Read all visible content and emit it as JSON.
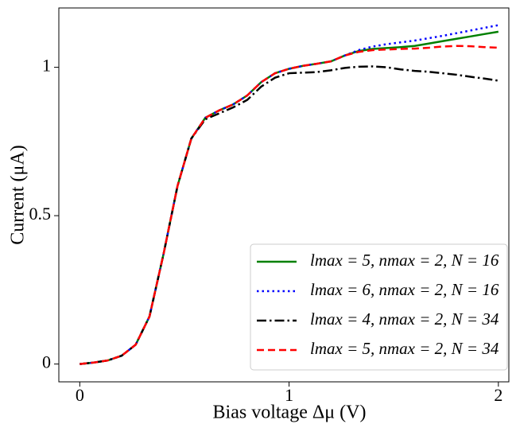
{
  "chart_data": {
    "type": "line",
    "xlabel": "Bias voltage Δμ (V)",
    "ylabel": "Current (μA)",
    "x": [
      0,
      0.067,
      0.133,
      0.2,
      0.267,
      0.333,
      0.4,
      0.467,
      0.533,
      0.6,
      0.667,
      0.733,
      0.8,
      0.867,
      0.933,
      1,
      1.067,
      1.133,
      1.2,
      1.267,
      1.333,
      1.4,
      1.467,
      1.533,
      1.6,
      1.667,
      1.733,
      1.8,
      1.867,
      1.933,
      2
    ],
    "xlim": [
      -0.1,
      2.05
    ],
    "xticks": [
      0,
      1,
      2
    ],
    "ylim": [
      -0.06,
      1.2
    ],
    "yticks": [
      0,
      0.5,
      1
    ],
    "legend": "lower right",
    "series": [
      {
        "name": "lmax = 5, nmax = 2, N = 16",
        "color": "#008000",
        "linestyle": "solid",
        "values": [
          0,
          0.005,
          0.012,
          0.028,
          0.065,
          0.16,
          0.37,
          0.6,
          0.76,
          0.83,
          0.855,
          0.875,
          0.905,
          0.95,
          0.98,
          0.995,
          1.005,
          1.012,
          1.02,
          1.04,
          1.055,
          1.062,
          1.065,
          1.068,
          1.072,
          1.08,
          1.088,
          1.096,
          1.104,
          1.112,
          1.12
        ]
      },
      {
        "name": "lmax = 6, nmax = 2, N = 16",
        "color": "#0000ff",
        "linestyle": "dotted",
        "values": [
          0,
          0.005,
          0.012,
          0.028,
          0.065,
          0.16,
          0.37,
          0.6,
          0.76,
          0.83,
          0.855,
          0.875,
          0.905,
          0.95,
          0.98,
          0.995,
          1.005,
          1.012,
          1.02,
          1.04,
          1.058,
          1.07,
          1.078,
          1.084,
          1.09,
          1.098,
          1.106,
          1.115,
          1.124,
          1.133,
          1.142
        ]
      },
      {
        "name": "lmax = 4, nmax = 2, N = 34",
        "color": "#000000",
        "linestyle": "dashdot",
        "values": [
          0,
          0.005,
          0.012,
          0.028,
          0.065,
          0.16,
          0.37,
          0.6,
          0.76,
          0.825,
          0.845,
          0.865,
          0.89,
          0.935,
          0.965,
          0.98,
          0.982,
          0.984,
          0.99,
          0.998,
          1.002,
          1.003,
          1.0,
          0.993,
          0.988,
          0.985,
          0.98,
          0.975,
          0.968,
          0.962,
          0.955
        ]
      },
      {
        "name": "lmax = 5, nmax = 2, N = 34",
        "color": "#ff0000",
        "linestyle": "dashed",
        "values": [
          0,
          0.005,
          0.012,
          0.028,
          0.065,
          0.16,
          0.37,
          0.6,
          0.76,
          0.83,
          0.855,
          0.875,
          0.905,
          0.95,
          0.98,
          0.995,
          1.005,
          1.012,
          1.02,
          1.04,
          1.052,
          1.058,
          1.06,
          1.062,
          1.063,
          1.066,
          1.07,
          1.072,
          1.071,
          1.068,
          1.066
        ]
      }
    ]
  }
}
